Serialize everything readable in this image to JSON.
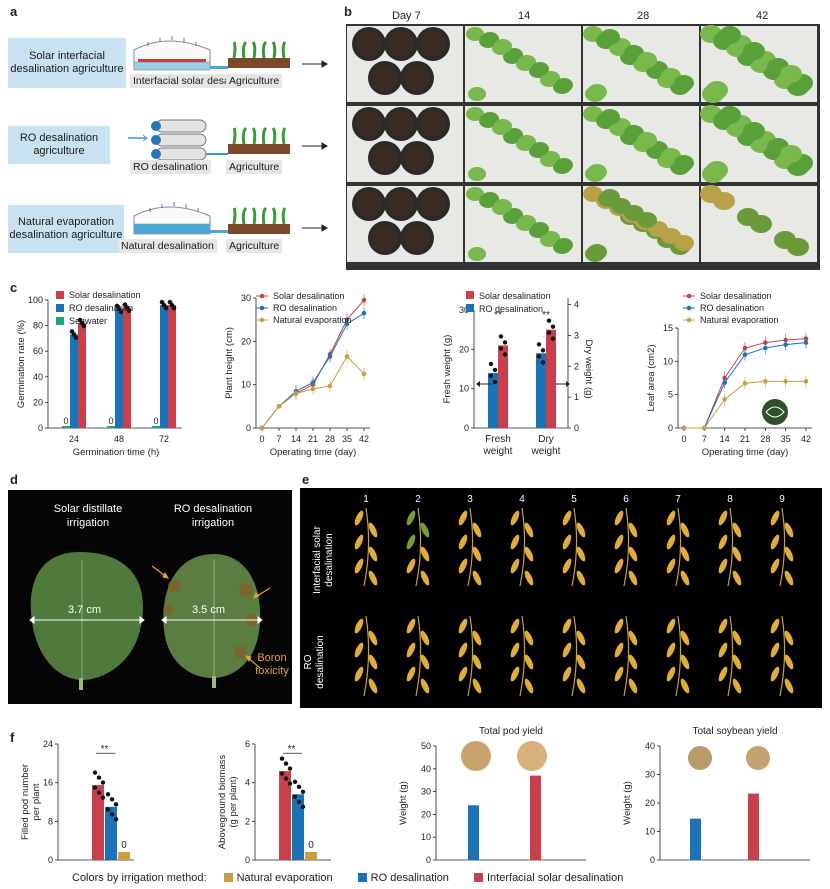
{
  "panels": {
    "a": "a",
    "b": "b",
    "c": "c",
    "d": "d",
    "e": "e",
    "f": "f"
  },
  "colors": {
    "solar": "#c9404c",
    "ro": "#1a73b7",
    "natural": "#c9a040",
    "seawater": "#1da57a",
    "blue_box": "#c9e2f2"
  },
  "panel_a": {
    "rows": [
      {
        "label": "Solar interfacial desalination agriculture",
        "device": "Interfacial solar desalination",
        "crop": "Agriculture"
      },
      {
        "label": "RO desalination agriculture",
        "device": "RO desalination",
        "crop": "Agriculture"
      },
      {
        "label": "Natural evaporation desalination agriculture",
        "device": "Natural desalination",
        "crop": "Agriculture"
      }
    ]
  },
  "panel_b": {
    "days": [
      "Day 7",
      "14",
      "28",
      "42"
    ]
  },
  "panel_d": {
    "left_title": "Solar distillate irrigation",
    "right_title": "RO desalination irrigation",
    "left_width": "3.7 cm",
    "right_width": "3.5 cm",
    "annotation": "Boron toxicity"
  },
  "panel_e": {
    "numbers": [
      "1",
      "2",
      "3",
      "4",
      "5",
      "6",
      "7",
      "8",
      "9"
    ],
    "row1": "Interfacial solar desalination",
    "row2": "RO desalination"
  },
  "footer": {
    "prefix": "Colors by irrigation method:",
    "items": [
      "Natural evaporation",
      "RO desalination",
      "Interfacial solar desalination"
    ]
  },
  "chart_data": [
    {
      "id": "germination",
      "type": "bar",
      "ylabel": "Germination rate (%)",
      "xlabel": "Germination time (h)",
      "categories": [
        "24",
        "48",
        "72"
      ],
      "ylim": [
        0,
        100
      ],
      "yticks": [
        0,
        20,
        40,
        60,
        80,
        100
      ],
      "legend": [
        "Solar desalination",
        "RO desalination",
        "Seawater"
      ],
      "series": [
        {
          "name": "Seawater",
          "values": [
            0,
            0,
            0
          ]
        },
        {
          "name": "RO desalination",
          "values": [
            73,
            93,
            96
          ]
        },
        {
          "name": "Solar desalination",
          "values": [
            82,
            94,
            96
          ]
        }
      ],
      "zero_labels": [
        "0",
        "0",
        "0"
      ]
    },
    {
      "id": "height",
      "type": "line",
      "ylabel": "Plant height (cm)",
      "xlabel": "Operating time (day)",
      "x": [
        0,
        7,
        14,
        21,
        28,
        35,
        42
      ],
      "ylim": [
        0,
        30
      ],
      "yticks": [
        0,
        10,
        20,
        30
      ],
      "series": [
        {
          "name": "Solar desalination",
          "values": [
            0,
            5,
            8,
            10,
            17,
            25,
            29.5
          ]
        },
        {
          "name": "RO desalination",
          "values": [
            0,
            5,
            8.5,
            10.5,
            16.5,
            24,
            26.5
          ]
        },
        {
          "name": "Natural evaporation",
          "values": [
            0,
            5,
            8,
            9,
            9.7,
            16.5,
            12.5
          ]
        }
      ]
    },
    {
      "id": "weight",
      "type": "bar",
      "ylabel": "Fresh weight (g)",
      "ylabel2": "Dry weight (g)",
      "categories": [
        "Fresh weight",
        "Dry weight"
      ],
      "ylim": [
        0,
        30
      ],
      "yticks": [
        0,
        10,
        20,
        30
      ],
      "yticks2": [
        0,
        1,
        2,
        3,
        4
      ],
      "legend": [
        "Solar desalination",
        "RO desalination"
      ],
      "series": [
        {
          "name": "RO desalination",
          "values": [
            14,
            19
          ]
        },
        {
          "name": "Solar desalination",
          "values": [
            21,
            25
          ]
        }
      ],
      "significance": [
        "**",
        "**"
      ]
    },
    {
      "id": "leaf",
      "type": "line",
      "ylabel": "Leaf area (cm2)",
      "xlabel": "Operating time (day)",
      "x": [
        0,
        7,
        14,
        21,
        28,
        35,
        42
      ],
      "ylim": [
        0,
        15
      ],
      "yticks": [
        0,
        5,
        10,
        15
      ],
      "series": [
        {
          "name": "Solar desalination",
          "values": [
            0,
            0,
            7.5,
            12,
            12.8,
            13.2,
            13.4
          ]
        },
        {
          "name": "RO desalination",
          "values": [
            0,
            0,
            6.8,
            11,
            12,
            12.5,
            12.8
          ]
        },
        {
          "name": "Natural evaporation",
          "values": [
            0,
            0,
            4.3,
            6.7,
            7,
            7,
            7
          ]
        }
      ]
    },
    {
      "id": "pods",
      "type": "bar",
      "ylabel": "Filled pod number per plant",
      "ylim": [
        0,
        24
      ],
      "yticks": [
        0,
        8,
        16,
        24
      ],
      "series": [
        {
          "name": "Interfacial solar desalination",
          "values": [
            15.5
          ]
        },
        {
          "name": "RO desalination",
          "values": [
            11
          ]
        },
        {
          "name": "Natural evaporation",
          "values": [
            0
          ]
        }
      ],
      "significance": "**",
      "zero_label": "0"
    },
    {
      "id": "biomass",
      "type": "bar",
      "ylabel": "Aboveground biomass (g per plant)",
      "ylim": [
        0,
        6
      ],
      "yticks": [
        0,
        2,
        4,
        6
      ],
      "series": [
        {
          "name": "Interfacial solar desalination",
          "values": [
            4.6
          ]
        },
        {
          "name": "RO desalination",
          "values": [
            3.4
          ]
        },
        {
          "name": "Natural evaporation",
          "values": [
            0
          ]
        }
      ],
      "significance": "**",
      "zero_label": "0"
    },
    {
      "id": "pod_yield",
      "type": "bar",
      "title": "Total pod yield",
      "ylabel": "Weight (g)",
      "ylim": [
        0,
        50
      ],
      "yticks": [
        0,
        10,
        20,
        30,
        40,
        50
      ],
      "series": [
        {
          "name": "RO desalination",
          "values": [
            24
          ]
        },
        {
          "name": "Interfacial solar desalination",
          "values": [
            37
          ]
        }
      ]
    },
    {
      "id": "soy_yield",
      "type": "bar",
      "title": "Total soybean yield",
      "ylabel": "Weight (g)",
      "ylim": [
        0,
        40
      ],
      "yticks": [
        0,
        10,
        20,
        30,
        40
      ],
      "series": [
        {
          "name": "RO desalination",
          "values": [
            14.5
          ]
        },
        {
          "name": "Interfacial solar desalination",
          "values": [
            23.3
          ]
        }
      ]
    }
  ]
}
